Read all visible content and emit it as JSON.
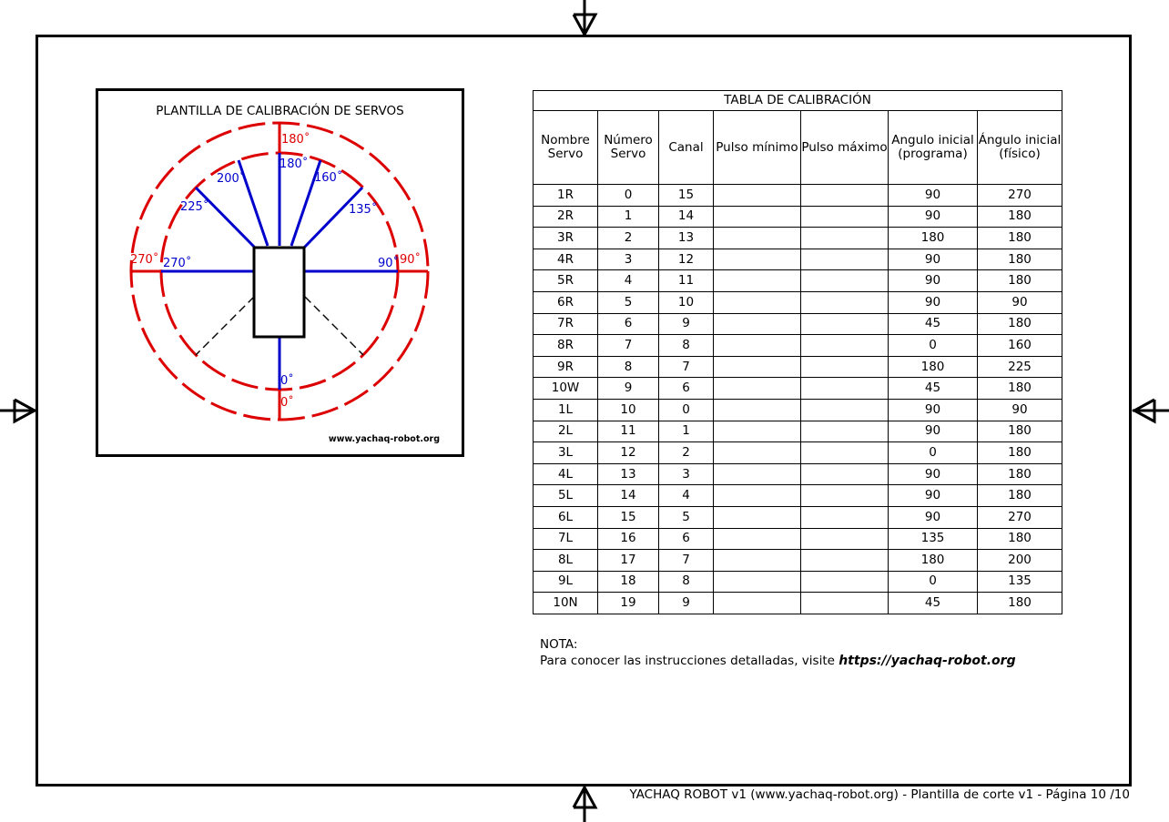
{
  "template": {
    "title": "PLANTILLA DE CALIBRACIÓN DE SERVOS",
    "url": "www.yachaq-robot.org",
    "inner_labels": [
      "0˚",
      "90˚",
      "135˚",
      "160˚",
      "180˚",
      "200˚",
      "225˚",
      "270˚"
    ],
    "outer_labels": [
      "0˚",
      "90˚",
      "180˚",
      "270˚"
    ],
    "colors": {
      "inner": "#0000cc",
      "outer": "#dd0000"
    }
  },
  "table": {
    "caption": "TABLA DE CALIBRACIÓN",
    "headers": [
      "Nombre Servo",
      "Número Servo",
      "Canal",
      "Pulso mínimo",
      "Pulso máximo",
      "Angulo inicial (programa)",
      "Ángulo inicial (físico)"
    ],
    "rows": [
      [
        "1R",
        "0",
        "15",
        "",
        "",
        "90",
        "270"
      ],
      [
        "2R",
        "1",
        "14",
        "",
        "",
        "90",
        "180"
      ],
      [
        "3R",
        "2",
        "13",
        "",
        "",
        "180",
        "180"
      ],
      [
        "4R",
        "3",
        "12",
        "",
        "",
        "90",
        "180"
      ],
      [
        "5R",
        "4",
        "11",
        "",
        "",
        "90",
        "180"
      ],
      [
        "6R",
        "5",
        "10",
        "",
        "",
        "90",
        "90"
      ],
      [
        "7R",
        "6",
        "9",
        "",
        "",
        "45",
        "180"
      ],
      [
        "8R",
        "7",
        "8",
        "",
        "",
        "0",
        "160"
      ],
      [
        "9R",
        "8",
        "7",
        "",
        "",
        "180",
        "225"
      ],
      [
        "10W",
        "9",
        "6",
        "",
        "",
        "45",
        "180"
      ],
      [
        "1L",
        "10",
        "0",
        "",
        "",
        "90",
        "90"
      ],
      [
        "2L",
        "11",
        "1",
        "",
        "",
        "90",
        "180"
      ],
      [
        "3L",
        "12",
        "2",
        "",
        "",
        "0",
        "180"
      ],
      [
        "4L",
        "13",
        "3",
        "",
        "",
        "90",
        "180"
      ],
      [
        "5L",
        "14",
        "4",
        "",
        "",
        "90",
        "180"
      ],
      [
        "6L",
        "15",
        "5",
        "",
        "",
        "90",
        "270"
      ],
      [
        "7L",
        "16",
        "6",
        "",
        "",
        "135",
        "180"
      ],
      [
        "8L",
        "17",
        "7",
        "",
        "",
        "180",
        "200"
      ],
      [
        "9L",
        "18",
        "8",
        "",
        "",
        "0",
        "135"
      ],
      [
        "10N",
        "19",
        "9",
        "",
        "",
        "45",
        "180"
      ]
    ]
  },
  "note": {
    "heading": "NOTA:",
    "text": "Para conocer las instrucciones detalladas, visite ",
    "link": "https://yachaq-robot.org"
  },
  "footer": "YACHAQ ROBOT v1 (www.yachaq-robot.org) - Plantilla de corte v1 - Página 10 /10"
}
